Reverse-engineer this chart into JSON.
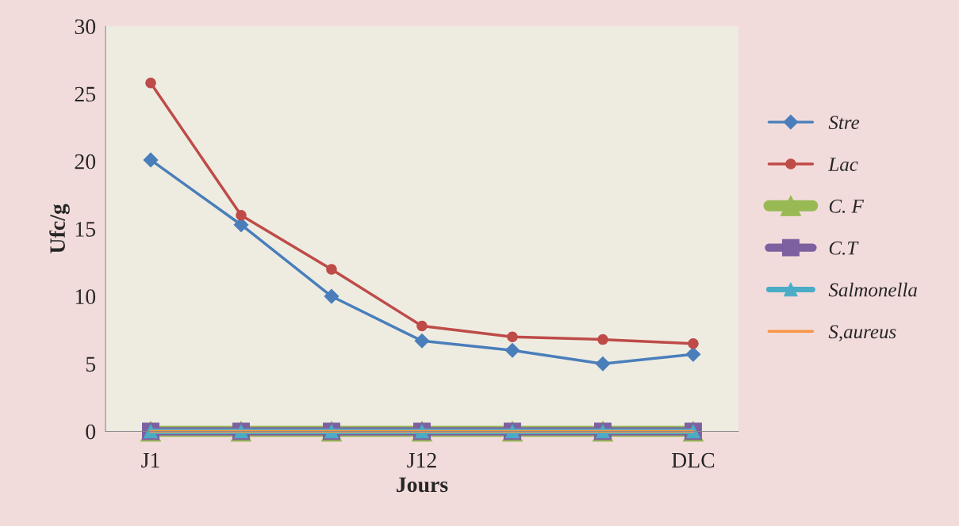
{
  "chart_data": {
    "type": "line",
    "xlabel": "Jours",
    "ylabel": "Ufc/g",
    "categories": [
      "J1",
      null,
      null,
      "J12",
      null,
      null,
      "DLC"
    ],
    "ylim": [
      0,
      30
    ],
    "yticks": [
      0,
      5,
      10,
      15,
      20,
      25,
      30
    ],
    "grid": false,
    "legend": "right",
    "line_style": "solid",
    "series": [
      {
        "name": "Stre",
        "color": "#4a7ebb",
        "marker": "diamond",
        "values": [
          20.1,
          15.3,
          10,
          6.7,
          6,
          5,
          5.7
        ]
      },
      {
        "name": "Lac",
        "color": "#be4b48",
        "marker": "circle",
        "values": [
          25.8,
          16,
          12,
          7.8,
          7,
          6.8,
          6.5
        ]
      },
      {
        "name": "C. F",
        "color": "#98b954",
        "marker": "triangle",
        "values": [
          0,
          0,
          0,
          0,
          0,
          0,
          0
        ]
      },
      {
        "name": "C.T",
        "color": "#7d60a0",
        "marker": "square",
        "values": [
          0,
          0,
          0,
          0,
          0,
          0,
          0
        ]
      },
      {
        "name": "Salmonella",
        "color": "#4bacc6",
        "marker": "triangle",
        "values": [
          0,
          0,
          0,
          0,
          0,
          0,
          0
        ]
      },
      {
        "name": "S,aureus",
        "color": "#f79646",
        "marker": "none",
        "values": [
          0,
          0,
          0,
          0,
          0,
          0,
          0
        ]
      }
    ]
  }
}
